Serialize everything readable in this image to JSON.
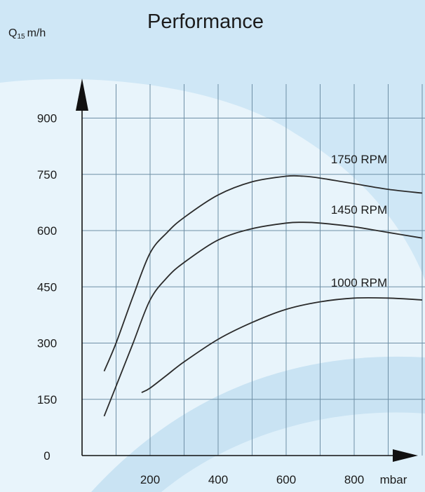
{
  "chart_data": {
    "type": "line",
    "title": "Performance",
    "ylabel": "Q15 m/h",
    "ylabel_parts": {
      "main": "Q",
      "sub": "15",
      "unit": "m/h"
    },
    "xlabel": "mbar",
    "xlim": [
      0,
      1000
    ],
    "ylim": [
      0,
      900
    ],
    "xticks": [
      200,
      400,
      600,
      800
    ],
    "yticks": [
      0,
      150,
      300,
      450,
      600,
      750,
      900
    ],
    "grid": true,
    "legend": "inline labels",
    "colors": {
      "line": "#2b2b2b",
      "grid": "#6e8fa6",
      "axis": "#111111",
      "bg_dark": "#cfe7f6",
      "bg_light": "#e8f4fb"
    },
    "series": [
      {
        "name": "1750 RPM",
        "x": [
          65,
          100,
          150,
          200,
          250,
          300,
          400,
          500,
          600,
          650,
          700,
          800,
          900,
          1000
        ],
        "y": [
          225,
          300,
          425,
          540,
          595,
          635,
          695,
          730,
          745,
          745,
          740,
          725,
          710,
          700
        ]
      },
      {
        "name": "1450 RPM",
        "x": [
          65,
          100,
          150,
          200,
          250,
          300,
          400,
          500,
          600,
          650,
          700,
          800,
          900,
          1000
        ],
        "y": [
          105,
          185,
          300,
          415,
          475,
          515,
          575,
          605,
          620,
          622,
          620,
          610,
          595,
          580
        ]
      },
      {
        "name": "1000 RPM",
        "x": [
          175,
          200,
          250,
          300,
          400,
          500,
          600,
          700,
          800,
          900,
          1000
        ],
        "y": [
          168,
          180,
          215,
          250,
          310,
          355,
          390,
          410,
          420,
          420,
          415
        ]
      }
    ]
  }
}
